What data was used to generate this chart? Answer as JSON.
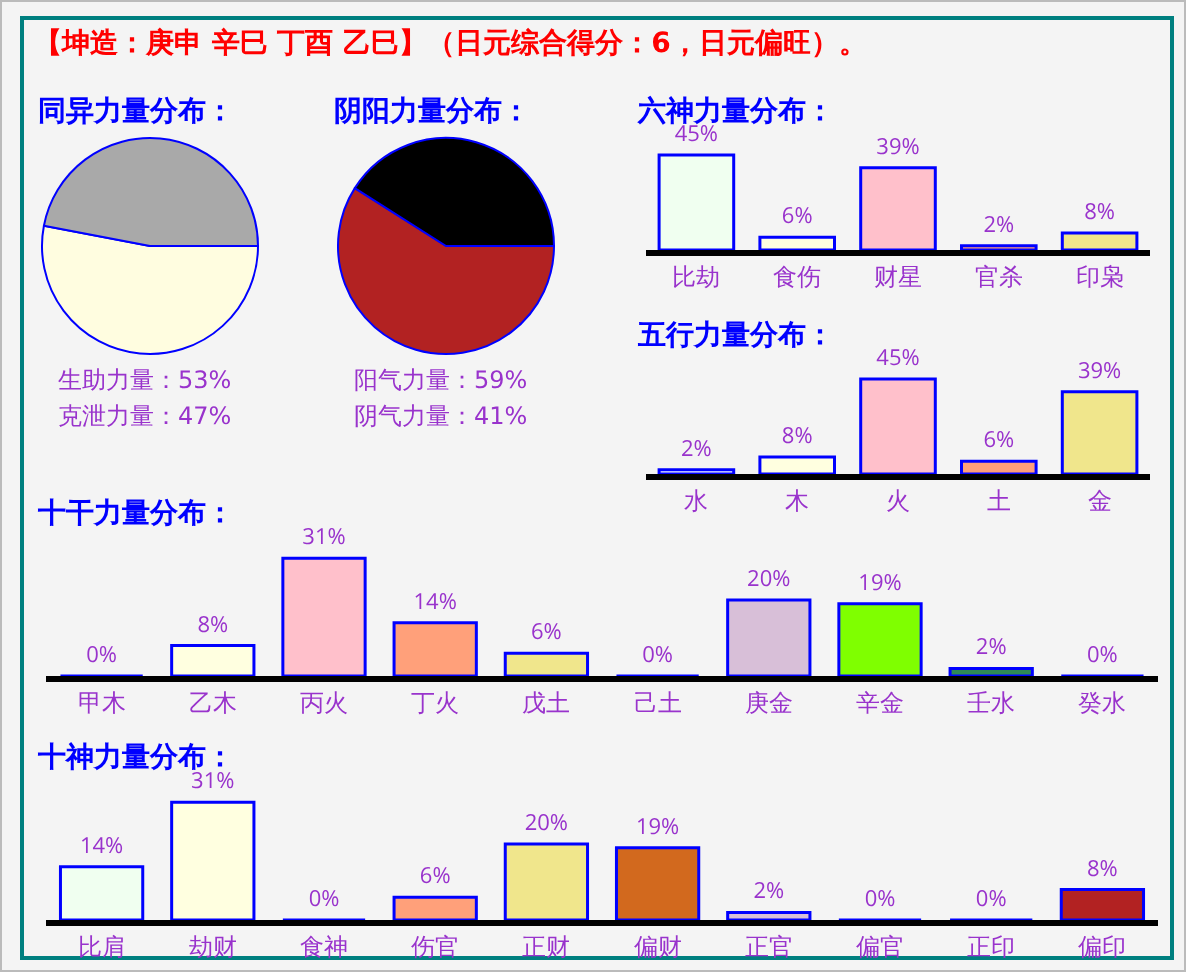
{
  "chart_data": [
    {
      "type": "other",
      "title": "【坤造：庚申 辛巳 丁酉 乙巳】（日元综合得分：6，日元偏旺）。"
    },
    {
      "type": "pie",
      "title": "同异力量分布：",
      "categories": [
        null,
        null
      ],
      "values": [
        53,
        47
      ],
      "colors": [
        "#fffde0",
        "#a9a9a9"
      ],
      "annotations": [
        "生助力量：53%",
        "克泄力量：47%"
      ]
    },
    {
      "type": "pie",
      "title": "阴阳力量分布：",
      "categories": [
        null,
        null
      ],
      "values": [
        59,
        41
      ],
      "colors": [
        "#b22222",
        "#000000"
      ],
      "annotations": [
        "阳气力量：59%",
        "阴气力量：41%"
      ]
    },
    {
      "type": "bar",
      "title": "六神力量分布：",
      "categories": [
        "比劫",
        "食伤",
        "财星",
        "官杀",
        "印枭"
      ],
      "values": [
        45,
        6,
        39,
        2,
        8
      ],
      "colors": [
        "#f0fff0",
        "#ffffe0",
        "#ffc0cb",
        "#ffa07a",
        "#f0e68c"
      ],
      "value_labels": [
        "45%",
        "6%",
        "39%",
        "2%",
        "8%"
      ]
    },
    {
      "type": "bar",
      "title": "五行力量分布：",
      "categories": [
        "水",
        "木",
        "火",
        "土",
        "金"
      ],
      "values": [
        2,
        8,
        45,
        6,
        39
      ],
      "colors": [
        "#f0f8ff",
        "#ffffe0",
        "#ffc0cb",
        "#ffa07a",
        "#f0e68c"
      ],
      "value_labels": [
        "2%",
        "8%",
        "45%",
        "6%",
        "39%"
      ]
    },
    {
      "type": "bar",
      "title": "十干力量分布：",
      "categories": [
        "甲木",
        "乙木",
        "丙火",
        "丁火",
        "戊土",
        "己土",
        "庚金",
        "辛金",
        "壬水",
        "癸水"
      ],
      "values": [
        0,
        8,
        31,
        14,
        6,
        0,
        20,
        19,
        2,
        0
      ],
      "colors": [
        null,
        "#ffffe0",
        "#ffc0cb",
        "#ffa07a",
        "#f0e68c",
        null,
        "#d8bfd8",
        "#7fff00",
        "#2e8b57",
        null
      ],
      "value_labels": [
        "0%",
        "8%",
        "31%",
        "14%",
        "6%",
        "0%",
        "20%",
        "19%",
        "2%",
        "0%"
      ]
    },
    {
      "type": "bar",
      "title": "十神力量分布：",
      "categories": [
        "比肩",
        "劫财",
        "食神",
        "伤官",
        "正财",
        "偏财",
        "正官",
        "偏官",
        "正印",
        "偏印"
      ],
      "values": [
        14,
        31,
        0,
        6,
        20,
        19,
        2,
        0,
        0,
        8
      ],
      "colors": [
        "#f0fff0",
        "#ffffe0",
        null,
        "#ffa07a",
        "#f0e68c",
        "#d2691e",
        "#d8bfd8",
        null,
        null,
        "#b22222"
      ],
      "value_labels": [
        "14%",
        "31%",
        "0%",
        "6%",
        "20%",
        "19%",
        "2%",
        "0%",
        "0%",
        "8%"
      ]
    }
  ]
}
